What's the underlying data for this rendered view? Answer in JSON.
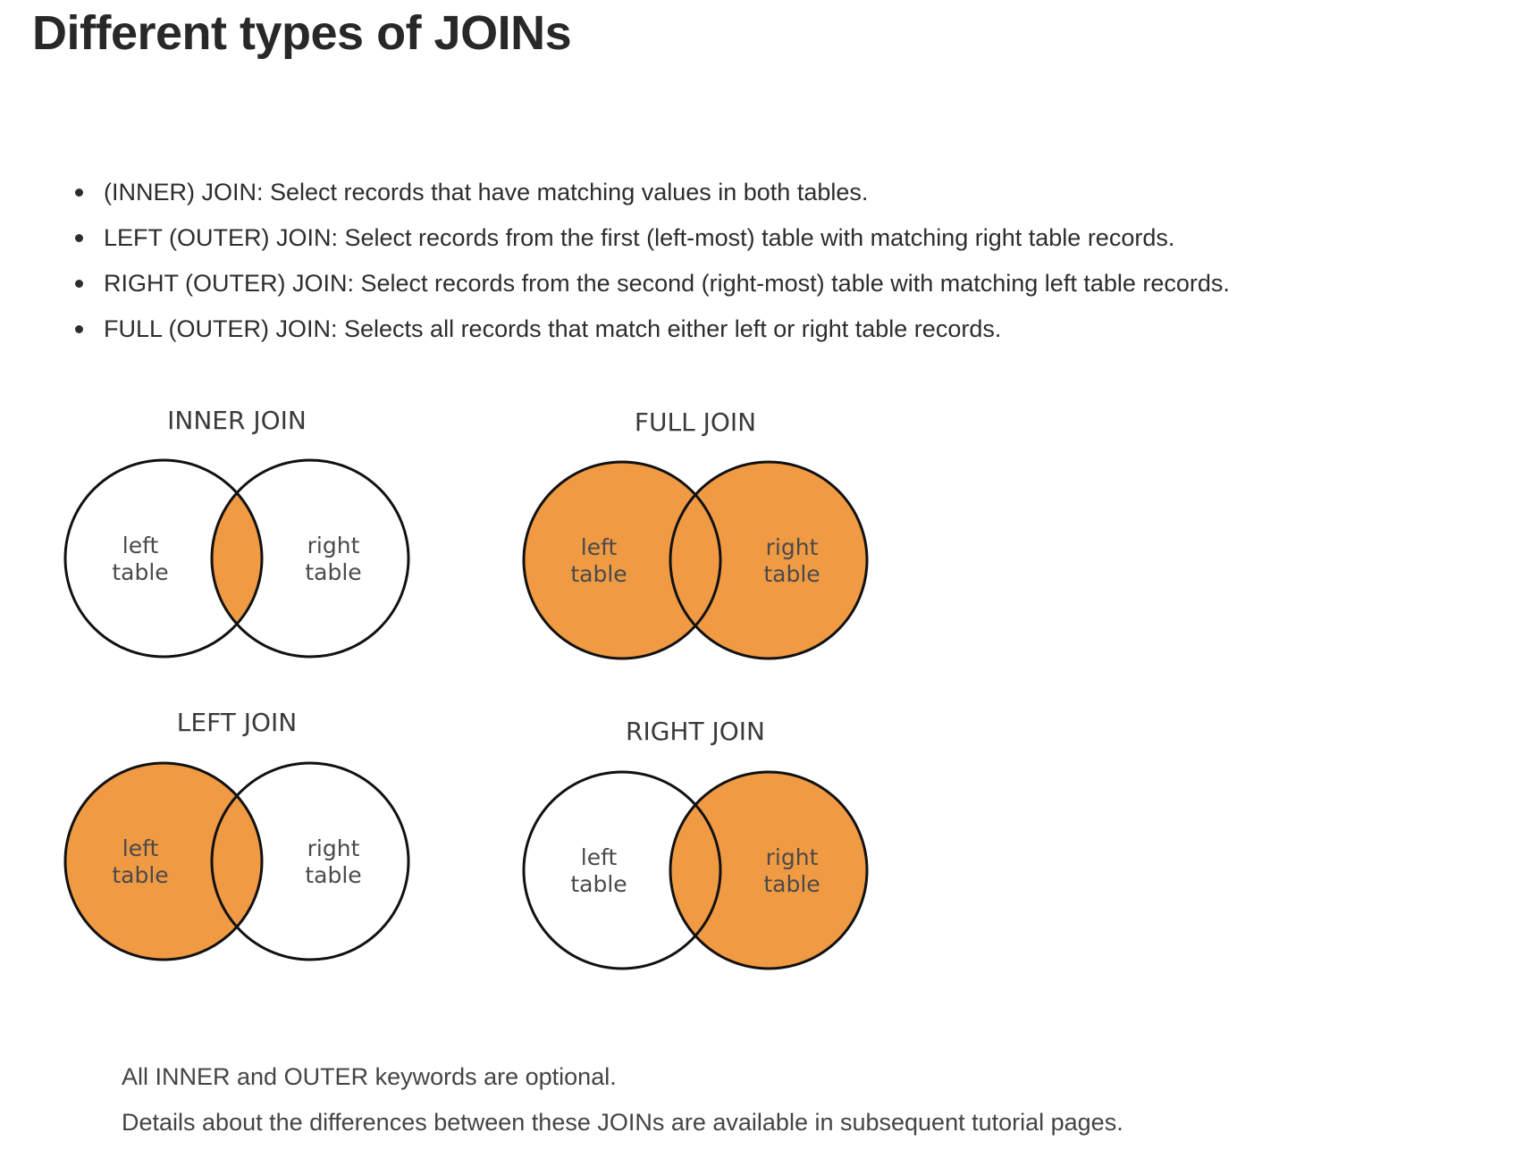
{
  "page": {
    "title": "Different types of JOINs"
  },
  "join_types": [
    {
      "text": "(INNER) JOIN: Select records that have matching values in both tables."
    },
    {
      "text": "LEFT (OUTER) JOIN: Select records from the first (left-most) table with matching right table records."
    },
    {
      "text": "RIGHT (OUTER) JOIN: Select records from the second (right-most) table with matching left table records."
    },
    {
      "text": "FULL (OUTER) JOIN: Selects all records that match either left or right table records."
    }
  ],
  "diagram": {
    "colors": {
      "fill": "#f09a44",
      "stroke": "#111111",
      "empty": "#ffffff"
    },
    "panels": [
      {
        "title": "INNER JOIN",
        "left_label": [
          "left",
          "table"
        ],
        "right_label": [
          "right",
          "table"
        ],
        "highlight": "intersection"
      },
      {
        "title": "FULL JOIN",
        "left_label": [
          "left",
          "table"
        ],
        "right_label": [
          "right",
          "table"
        ],
        "highlight": "both"
      },
      {
        "title": "LEFT JOIN",
        "left_label": [
          "left",
          "table"
        ],
        "right_label": [
          "right",
          "table"
        ],
        "highlight": "left"
      },
      {
        "title": "RIGHT JOIN",
        "left_label": [
          "left",
          "table"
        ],
        "right_label": [
          "right",
          "table"
        ],
        "highlight": "right"
      }
    ]
  },
  "notes": {
    "optional": "All INNER and OUTER keywords are optional.",
    "details": "Details about the differences between these JOINs are available in subsequent tutorial pages."
  }
}
